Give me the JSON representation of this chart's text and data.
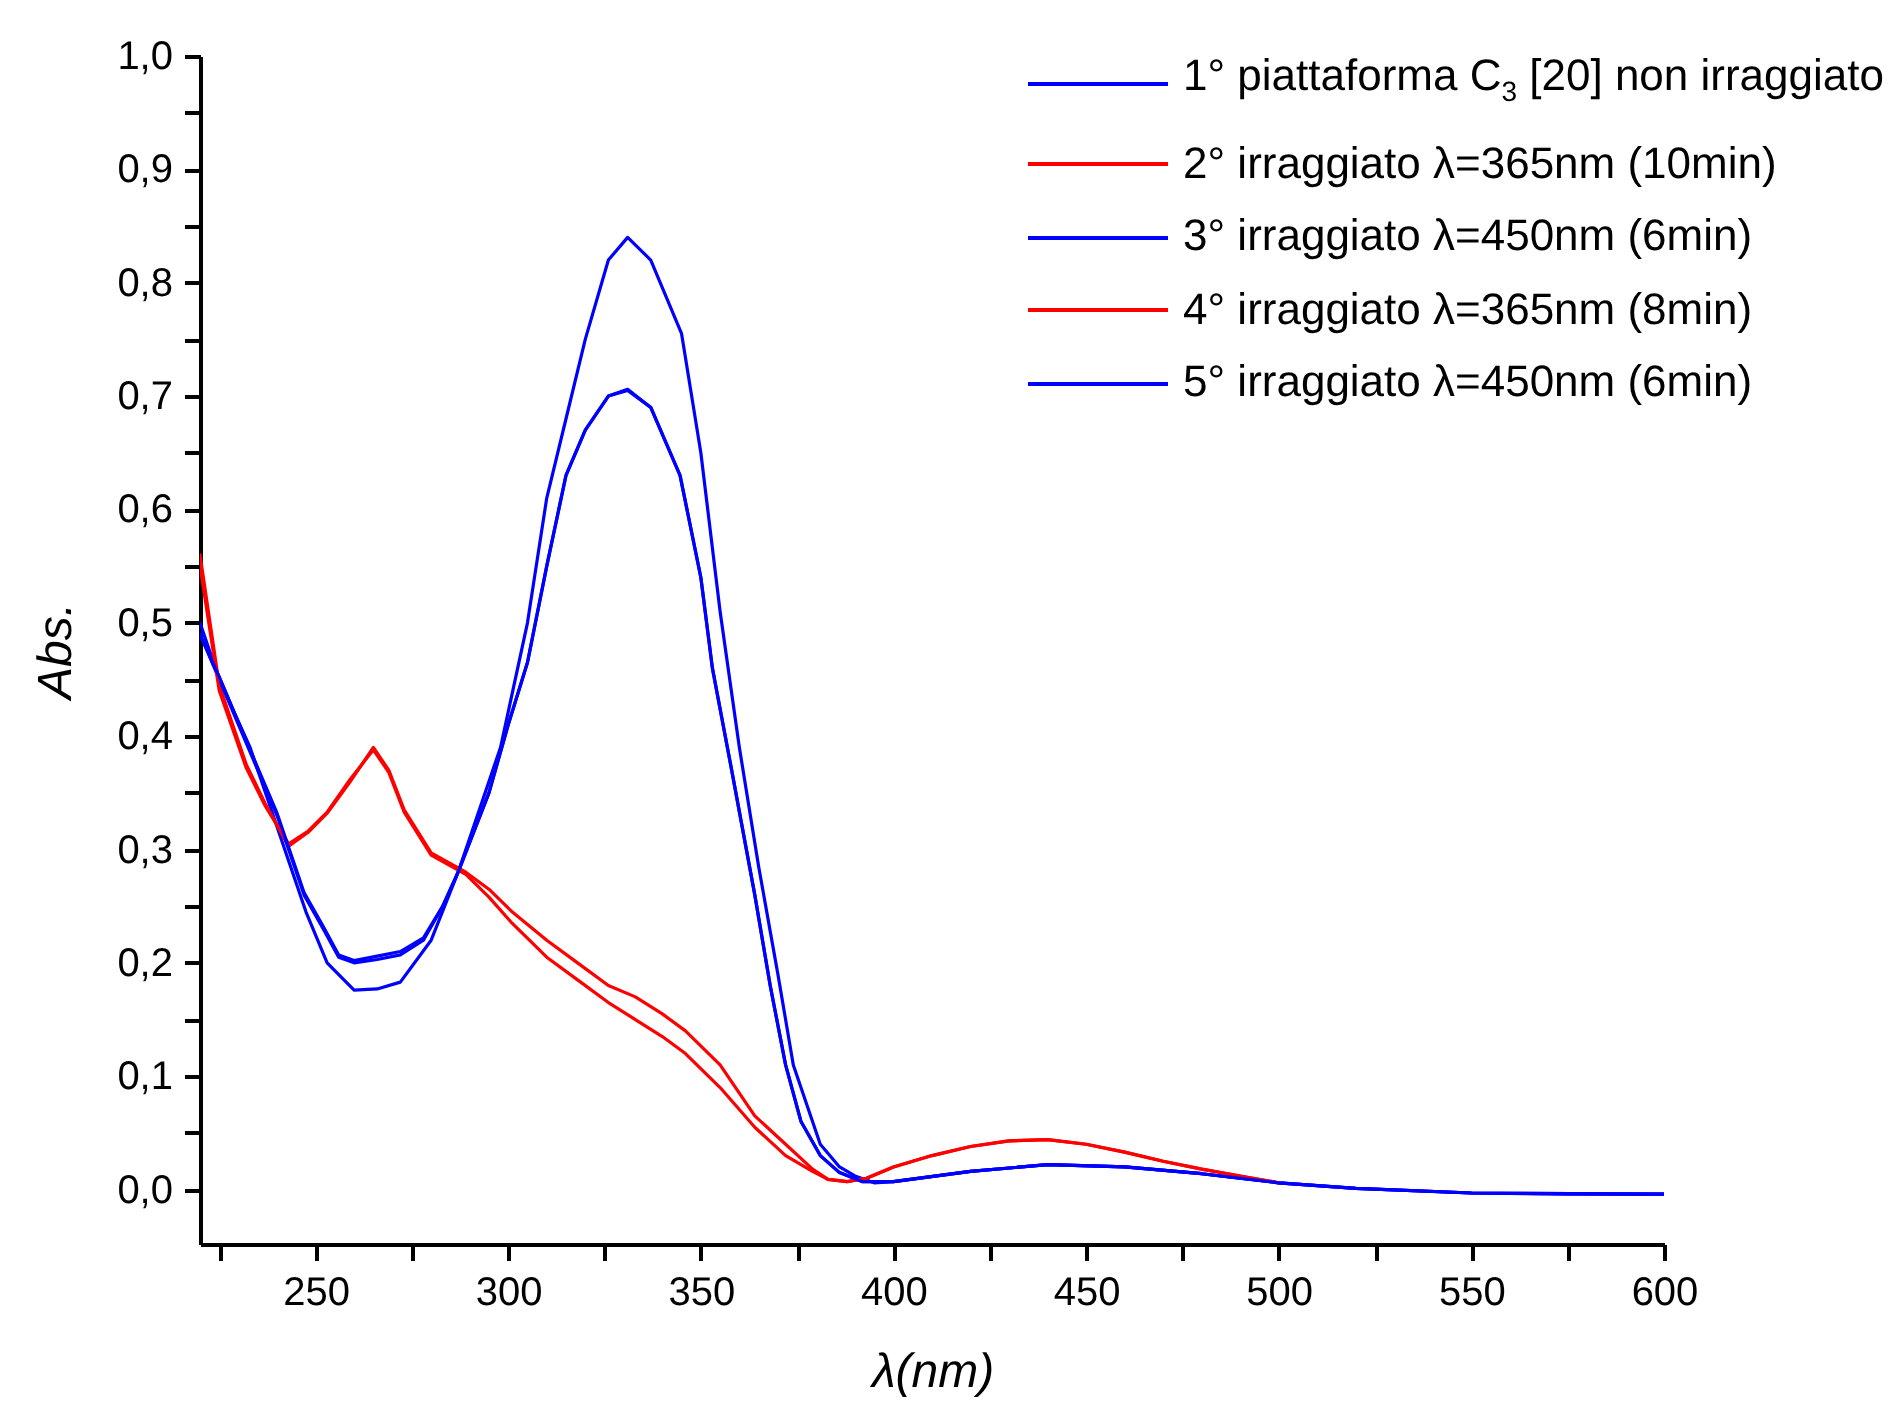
{
  "chart_data": {
    "type": "line",
    "xlabel": "λ(nm)",
    "ylabel": "Abs.",
    "xlim": [
      220,
      600
    ],
    "ylim": [
      -0.048,
      1.0
    ],
    "xticks": [
      {
        "value": 225,
        "label": null
      },
      250,
      {
        "value": 275,
        "label": null
      },
      300,
      {
        "value": 325,
        "label": null
      },
      350,
      {
        "value": 375,
        "label": null
      },
      400,
      {
        "value": 425,
        "label": null
      },
      450,
      {
        "value": 475,
        "label": null
      },
      500,
      {
        "value": 525,
        "label": null
      },
      550,
      {
        "value": 575,
        "label": null
      },
      600
    ],
    "yticks": [
      {
        "value": 0,
        "label": "0,0"
      },
      {
        "value": 0.05,
        "label": null
      },
      {
        "value": 0.1,
        "label": "0,1"
      },
      {
        "value": 0.15,
        "label": null
      },
      {
        "value": 0.2,
        "label": "0,2"
      },
      {
        "value": 0.25,
        "label": null
      },
      {
        "value": 0.3,
        "label": "0,3"
      },
      {
        "value": 0.35,
        "label": null
      },
      {
        "value": 0.4,
        "label": "0,4"
      },
      {
        "value": 0.45,
        "label": null
      },
      {
        "value": 0.5,
        "label": "0,5"
      },
      {
        "value": 0.55,
        "label": null
      },
      {
        "value": 0.6,
        "label": "0,6"
      },
      {
        "value": 0.65,
        "label": null
      },
      {
        "value": 0.7,
        "label": "0,7"
      },
      {
        "value": 0.75,
        "label": null
      },
      {
        "value": 0.8,
        "label": "0,8"
      },
      {
        "value": 0.85,
        "label": null
      },
      {
        "value": 0.9,
        "label": "0,9"
      },
      {
        "value": 0.95,
        "label": null
      },
      {
        "value": 1.0,
        "label": "1,0"
      }
    ],
    "legend": "top right",
    "marker": "none",
    "line_style": "solid",
    "series": [
      {
        "name": "1° piattaforma C$_{3}$ [20] non irraggiato",
        "color": "#0000ff",
        "x": [
          220,
          224,
          229,
          233,
          239,
          247.5,
          253,
          260,
          266,
          272,
          280,
          287,
          295,
          298,
          305,
          310,
          315,
          320,
          326,
          331,
          337,
          345,
          350,
          355,
          360,
          365,
          370,
          374,
          381,
          386,
          390,
          395,
          400,
          420,
          440,
          460,
          480,
          500,
          520,
          550,
          575,
          600
        ],
        "values": [
          0.5,
          0.46,
          0.42,
          0.39,
          0.33,
          0.245,
          0.2,
          0.176,
          0.177,
          0.183,
          0.22,
          0.28,
          0.36,
          0.39,
          0.5,
          0.61,
          0.68,
          0.75,
          0.82,
          0.84,
          0.82,
          0.755,
          0.65,
          0.51,
          0.39,
          0.285,
          0.19,
          0.11,
          0.04,
          0.02,
          0.012,
          0.006,
          0.007,
          0.016,
          0.022,
          0.02,
          0.014,
          0.006,
          0.001,
          -0.003,
          -0.004,
          -0.004
        ]
      },
      {
        "name": "2° irraggiato λ=365nm (10min)",
        "color": "#ff0000",
        "x": [
          220,
          225,
          232,
          237,
          243,
          248,
          253,
          259,
          265,
          269,
          273,
          280,
          289,
          295,
          301,
          310,
          318,
          326,
          333,
          340,
          346,
          355,
          364,
          372,
          379,
          383,
          388,
          393,
          400,
          410,
          420,
          430,
          440,
          450,
          460,
          470,
          480,
          490,
          500
        ],
        "values": [
          0.56,
          0.445,
          0.375,
          0.34,
          0.303,
          0.315,
          0.332,
          0.36,
          0.39,
          0.37,
          0.335,
          0.297,
          0.28,
          0.265,
          0.245,
          0.22,
          0.2,
          0.18,
          0.17,
          0.155,
          0.14,
          0.11,
          0.065,
          0.04,
          0.018,
          0.009,
          0.007,
          0.01,
          0.02,
          0.03,
          0.038,
          0.043,
          0.044,
          0.04,
          0.033,
          0.025,
          0.018,
          0.012,
          0.006
        ]
      },
      {
        "name": "3° irraggiato λ=450nm (6min)",
        "color": "#0000ff",
        "x": [
          220,
          225,
          230,
          235,
          240,
          247,
          252,
          256,
          260,
          266,
          272,
          278,
          283,
          287,
          295,
          300,
          305,
          310,
          315,
          320,
          326,
          331,
          337,
          344.6,
          350,
          353,
          358,
          364,
          368,
          372,
          376,
          381,
          386,
          392,
          400,
          420,
          440,
          460,
          480,
          500,
          520,
          550,
          600
        ],
        "values": [
          0.49,
          0.45,
          0.41,
          0.37,
          0.33,
          0.26,
          0.23,
          0.205,
          0.2,
          0.203,
          0.207,
          0.22,
          0.25,
          0.28,
          0.35,
          0.41,
          0.465,
          0.55,
          0.63,
          0.67,
          0.7,
          0.706,
          0.69,
          0.63,
          0.54,
          0.46,
          0.37,
          0.26,
          0.18,
          0.11,
          0.06,
          0.03,
          0.015,
          0.007,
          0.007,
          0.016,
          0.022,
          0.02,
          0.014,
          0.006,
          0.001,
          -0.003,
          -0.004
        ]
      },
      {
        "name": "4° irraggiato λ=365nm (8min)",
        "color": "#ff0000",
        "x": [
          220,
          225,
          232,
          237,
          243,
          248,
          253,
          259,
          265,
          269,
          273,
          280,
          289,
          295,
          301,
          310,
          318,
          326,
          333,
          340,
          346,
          355,
          364,
          372,
          379,
          383,
          388,
          393,
          400,
          410,
          420,
          430,
          440,
          450,
          460,
          470,
          480,
          490,
          500
        ],
        "values": [
          0.55,
          0.44,
          0.372,
          0.338,
          0.305,
          0.316,
          0.333,
          0.362,
          0.388,
          0.368,
          0.333,
          0.295,
          0.278,
          0.258,
          0.235,
          0.205,
          0.185,
          0.165,
          0.15,
          0.135,
          0.12,
          0.09,
          0.055,
          0.03,
          0.016,
          0.009,
          0.007,
          0.01,
          0.02,
          0.03,
          0.038,
          0.043,
          0.044,
          0.04,
          0.033,
          0.025,
          0.018,
          0.012,
          0.006
        ]
      },
      {
        "name": "5° irraggiato λ=450nm (6min)",
        "color": "#0000ff",
        "x": [
          220,
          225,
          230,
          235,
          240,
          247,
          252,
          256,
          260,
          266,
          272,
          278,
          283,
          287,
          295,
          300,
          305,
          310,
          315,
          320,
          326,
          331,
          337,
          344.6,
          350,
          353,
          358,
          364,
          368,
          372,
          376,
          381,
          386,
          392,
          400,
          420,
          440,
          460,
          480,
          500,
          520,
          550,
          600
        ],
        "values": [
          0.49,
          0.452,
          0.412,
          0.372,
          0.332,
          0.262,
          0.232,
          0.207,
          0.202,
          0.206,
          0.21,
          0.222,
          0.25,
          0.28,
          0.35,
          0.41,
          0.465,
          0.55,
          0.63,
          0.67,
          0.7,
          0.705,
          0.69,
          0.63,
          0.54,
          0.46,
          0.37,
          0.26,
          0.18,
          0.11,
          0.06,
          0.03,
          0.015,
          0.007,
          0.007,
          0.016,
          0.022,
          0.02,
          0.014,
          0.006,
          0.001,
          -0.003,
          -0.004
        ]
      }
    ]
  }
}
